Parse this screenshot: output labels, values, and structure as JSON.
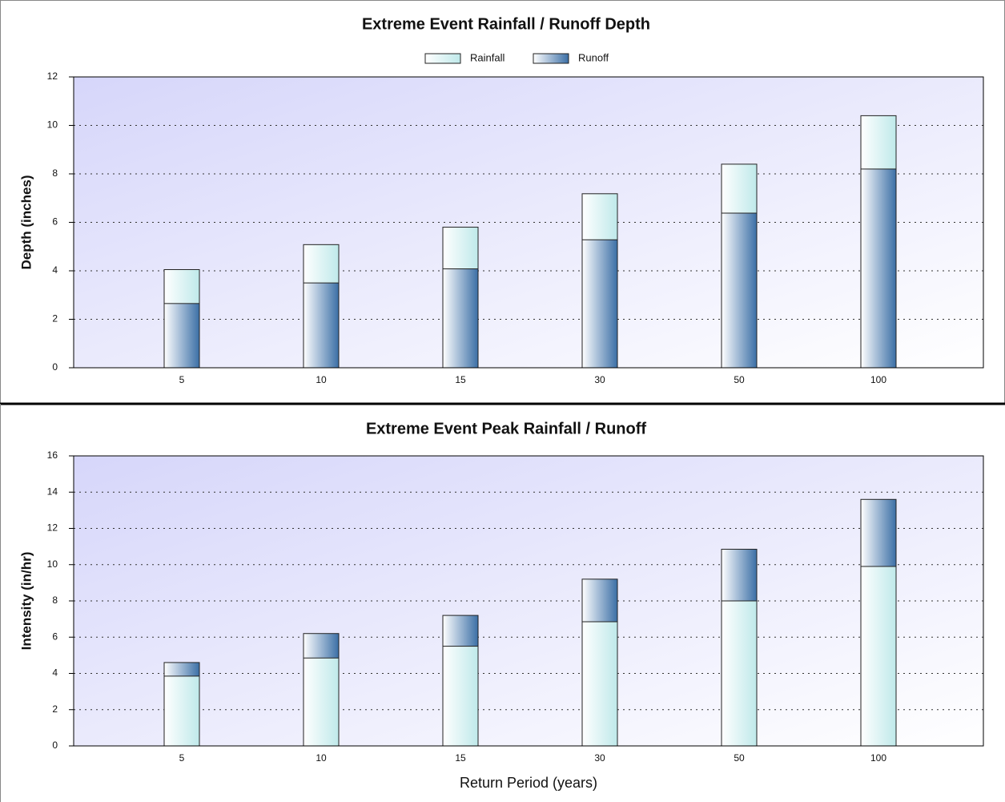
{
  "chart_data": [
    {
      "type": "bar",
      "title": "Extreme Event Rainfall / Runoff Depth",
      "ylabel": "Depth (inches)",
      "categories": [
        "5",
        "10",
        "15",
        "30",
        "50",
        "100"
      ],
      "series": [
        {
          "name": "Rainfall",
          "color": "#bfe9ea",
          "values": [
            4.05,
            5.08,
            5.8,
            7.18,
            8.4,
            10.4
          ]
        },
        {
          "name": "Runoff",
          "color": "#3b6fa6",
          "values": [
            2.65,
            3.5,
            4.08,
            5.28,
            6.38,
            8.2
          ]
        }
      ],
      "ylim": [
        0,
        12
      ],
      "yticks": [
        0,
        2,
        4,
        6,
        8,
        10,
        12
      ],
      "grid": true,
      "legend": "top"
    },
    {
      "type": "bar",
      "title": "Extreme Event Peak Rainfall / Runoff",
      "ylabel": "Intensity (in/hr)",
      "xlabel": "Return Period (years)",
      "categories": [
        "5",
        "10",
        "15",
        "30",
        "50",
        "100"
      ],
      "series": [
        {
          "color": "#3b6fa6",
          "values": [
            4.6,
            6.2,
            7.2,
            9.2,
            10.85,
            13.6
          ]
        },
        {
          "color": "#bfe9ea",
          "values": [
            3.85,
            4.85,
            5.5,
            6.85,
            8.0,
            9.9
          ]
        }
      ],
      "ylim": [
        0,
        16
      ],
      "yticks": [
        0,
        2,
        4,
        6,
        8,
        10,
        12,
        14,
        16
      ],
      "grid": true
    }
  ]
}
